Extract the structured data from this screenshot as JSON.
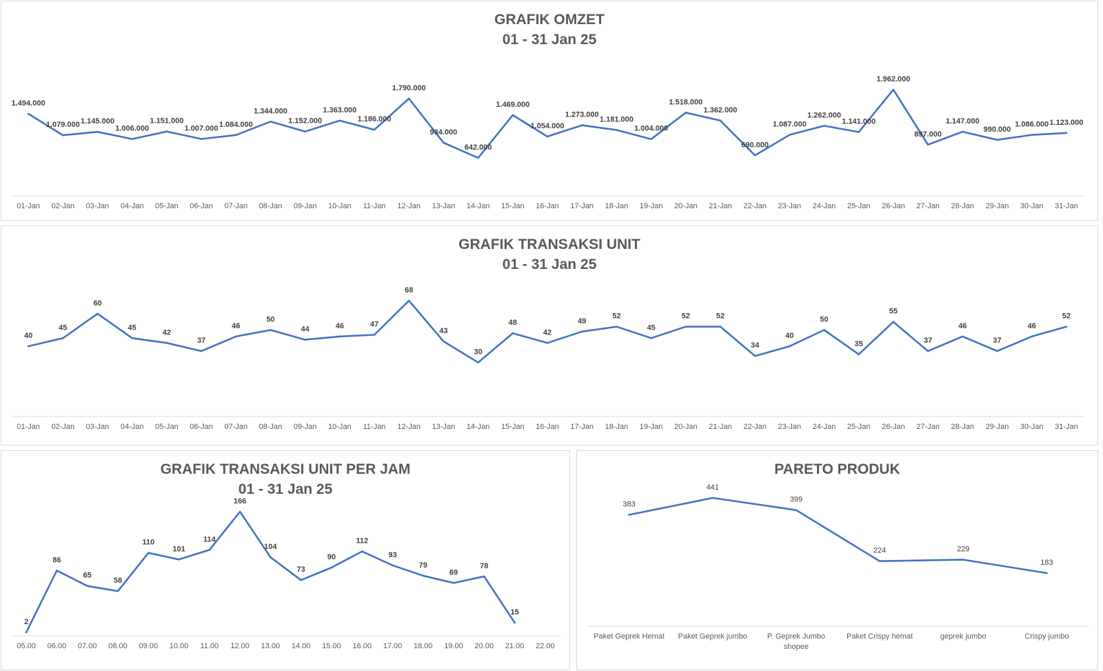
{
  "colors": {
    "line": "#4472C4",
    "axis": "#d9d9d9",
    "title": "#595959",
    "label": "#404040"
  },
  "chart_data": [
    {
      "type": "line",
      "title": "GRAFIK OMZET",
      "subtitle": "01 - 31 Jan 25",
      "categories": [
        "01-Jan",
        "02-Jan",
        "03-Jan",
        "04-Jan",
        "05-Jan",
        "06-Jan",
        "07-Jan",
        "08-Jan",
        "09-Jan",
        "10-Jan",
        "11-Jan",
        "12-Jan",
        "13-Jan",
        "14-Jan",
        "15-Jan",
        "16-Jan",
        "17-Jan",
        "18-Jan",
        "19-Jan",
        "20-Jan",
        "21-Jan",
        "22-Jan",
        "23-Jan",
        "24-Jan",
        "25-Jan",
        "26-Jan",
        "27-Jan",
        "28-Jan",
        "29-Jan",
        "30-Jan",
        "31-Jan"
      ],
      "values": [
        1494000,
        1079000,
        1145000,
        1006000,
        1151000,
        1007000,
        1084000,
        1344000,
        1152000,
        1363000,
        1186000,
        1790000,
        934000,
        642000,
        1469000,
        1054000,
        1273000,
        1181000,
        1004000,
        1518000,
        1362000,
        690000,
        1087000,
        1262000,
        1141000,
        1962000,
        897000,
        1147000,
        990000,
        1086000,
        1123000
      ],
      "data_labels": [
        "1.494.000",
        "1.079.000",
        "1.145.000",
        "1.006.000",
        "1.151.000",
        "1.007.000",
        "1.084.000",
        "1.344.000",
        "1.152.000",
        "1.363.000",
        "1.186.000",
        "1.790.000",
        "934.000",
        "642.000",
        "1.469.000",
        "1.054.000",
        "1.273.000",
        "1.181.000",
        "1.004.000",
        "1.518.000",
        "1.362.000",
        "690.000",
        "1.087.000",
        "1.262.000",
        "1.141.000",
        "1.962.000",
        "897.000",
        "1.147.000",
        "990.000",
        "1.086.000",
        "1.123.000"
      ],
      "grid": false,
      "legend": "none"
    },
    {
      "type": "line",
      "title": "GRAFIK TRANSAKSI UNIT",
      "subtitle": "01 - 31 Jan 25",
      "categories": [
        "01-Jan",
        "02-Jan",
        "03-Jan",
        "04-Jan",
        "05-Jan",
        "06-Jan",
        "07-Jan",
        "08-Jan",
        "09-Jan",
        "10-Jan",
        "11-Jan",
        "12-Jan",
        "13-Jan",
        "14-Jan",
        "15-Jan",
        "16-Jan",
        "17-Jan",
        "18-Jan",
        "19-Jan",
        "20-Jan",
        "21-Jan",
        "22-Jan",
        "23-Jan",
        "24-Jan",
        "25-Jan",
        "26-Jan",
        "27-Jan",
        "28-Jan",
        "29-Jan",
        "30-Jan",
        "31-Jan"
      ],
      "values": [
        40,
        45,
        60,
        45,
        42,
        37,
        46,
        50,
        44,
        46,
        47,
        68,
        43,
        30,
        48,
        42,
        49,
        52,
        45,
        52,
        52,
        34,
        40,
        50,
        35,
        55,
        37,
        46,
        37,
        46,
        52
      ],
      "data_labels": [
        "40",
        "45",
        "60",
        "45",
        "42",
        "37",
        "46",
        "50",
        "44",
        "46",
        "47",
        "68",
        "43",
        "30",
        "48",
        "42",
        "49",
        "52",
        "45",
        "52",
        "52",
        "34",
        "40",
        "50",
        "35",
        "55",
        "37",
        "46",
        "37",
        "46",
        "52"
      ],
      "grid": false,
      "legend": "none"
    },
    {
      "type": "line",
      "title": "GRAFIK TRANSAKSI UNIT PER JAM",
      "subtitle": "01 - 31 Jan 25",
      "categories": [
        "05.00",
        "06.00",
        "07.00",
        "08.00",
        "09.00",
        "10.00",
        "11.00",
        "12.00",
        "13.00",
        "14.00",
        "15.00",
        "16.00",
        "17.00",
        "18.00",
        "19.00",
        "20.00",
        "21.00",
        "22.00"
      ],
      "values": [
        2,
        86,
        65,
        58,
        110,
        101,
        114,
        166,
        104,
        73,
        90,
        112,
        93,
        79,
        69,
        78,
        15,
        null
      ],
      "data_labels": [
        "2",
        "86",
        "65",
        "58",
        "110",
        "101",
        "114",
        "166",
        "104",
        "73",
        "90",
        "112",
        "93",
        "79",
        "69",
        "78",
        "15",
        ""
      ],
      "grid": false,
      "legend": "none"
    },
    {
      "type": "line",
      "title": "PARETO PRODUK",
      "subtitle": "",
      "categories": [
        "Paket Geprek Hemat",
        "Paket Geprek jumbo",
        "P. Geprek Jumbo shopee",
        "Paket Crispy hemat",
        "geprek jumbo",
        "Crispy jumbo"
      ],
      "values": [
        383,
        441,
        399,
        224,
        229,
        183
      ],
      "data_labels": [
        "383",
        "441",
        "399",
        "224",
        "229",
        "183"
      ],
      "grid": false,
      "legend": "none"
    }
  ]
}
